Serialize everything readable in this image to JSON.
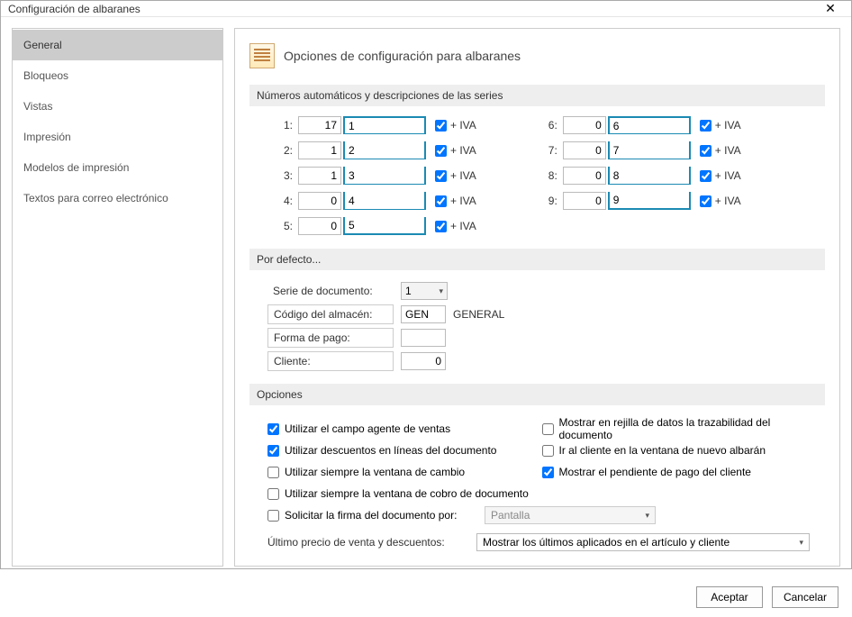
{
  "window": {
    "title": "Configuración de albaranes"
  },
  "sidebar": {
    "items": [
      {
        "label": "General",
        "active": true
      },
      {
        "label": "Bloqueos",
        "active": false
      },
      {
        "label": "Vistas",
        "active": false
      },
      {
        "label": "Impresión",
        "active": false
      },
      {
        "label": "Modelos de impresión",
        "active": false
      },
      {
        "label": "Textos para correo electrónico",
        "active": false
      }
    ]
  },
  "panel": {
    "title": "Opciones de configuración para albaranes"
  },
  "sections": {
    "series_head": "Números automáticos y descripciones de las series",
    "defaults_head": "Por defecto...",
    "options_head": "Opciones"
  },
  "iva_label": "+ IVA",
  "series_left": [
    {
      "idx": "1:",
      "num": "17",
      "desc": "1",
      "iva": true
    },
    {
      "idx": "2:",
      "num": "1",
      "desc": "2",
      "iva": true
    },
    {
      "idx": "3:",
      "num": "1",
      "desc": "3",
      "iva": true
    },
    {
      "idx": "4:",
      "num": "0",
      "desc": "4",
      "iva": true
    },
    {
      "idx": "5:",
      "num": "0",
      "desc": "5",
      "iva": true
    }
  ],
  "series_right": [
    {
      "idx": "6:",
      "num": "0",
      "desc": "6",
      "iva": true
    },
    {
      "idx": "7:",
      "num": "0",
      "desc": "7",
      "iva": true
    },
    {
      "idx": "8:",
      "num": "0",
      "desc": "8",
      "iva": true
    },
    {
      "idx": "9:",
      "num": "0",
      "desc": "9",
      "iva": true
    }
  ],
  "defaults": {
    "serie_label": "Serie de documento:",
    "serie_value": "1",
    "almacen_label": "Código del almacén:",
    "almacen_code": "GEN",
    "almacen_name": "GENERAL",
    "pago_label": "Forma de pago:",
    "pago_value": "",
    "cliente_label": "Cliente:",
    "cliente_value": "0"
  },
  "options": {
    "left": [
      {
        "label": "Utilizar el campo agente de ventas",
        "checked": true
      },
      {
        "label": "Utilizar descuentos en líneas del documento",
        "checked": true
      },
      {
        "label": "Utilizar siempre la ventana de cambio",
        "checked": false
      },
      {
        "label": "Utilizar siempre la ventana de cobro de documento",
        "checked": false
      }
    ],
    "right": [
      {
        "label": "Mostrar en rejilla de datos la trazabilidad del documento",
        "checked": false
      },
      {
        "label": "Ir al cliente en la ventana de nuevo albarán",
        "checked": false
      },
      {
        "label": "Mostrar el pendiente de pago del cliente",
        "checked": true
      }
    ],
    "firma_label": "Solicitar la firma del documento por:",
    "firma_value": "Pantalla",
    "firma_checked": false,
    "precio_label": "Último precio de venta y descuentos:",
    "precio_value": "Mostrar los últimos aplicados en el artículo y cliente"
  },
  "buttons": {
    "ok": "Aceptar",
    "cancel": "Cancelar"
  }
}
